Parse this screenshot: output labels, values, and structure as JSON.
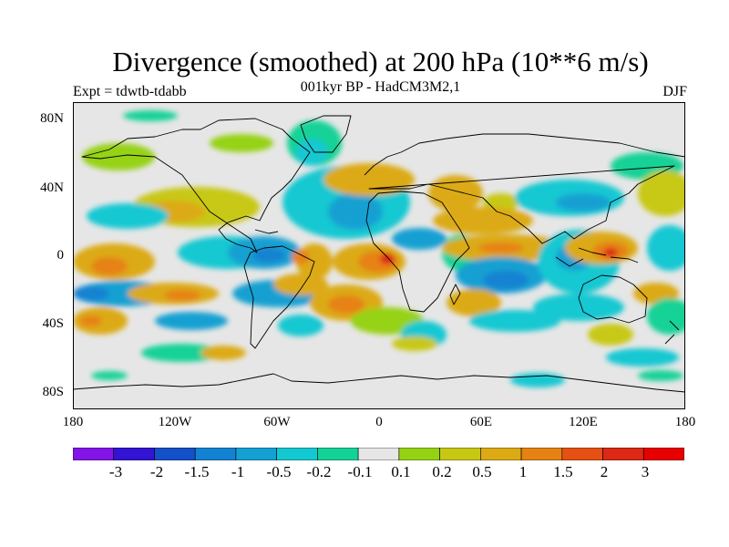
{
  "title": "Divergence (smoothed) at 200 hPa (10**6 m/s)",
  "subtitle": "001kyr BP - HadCM3M2,1",
  "experiment": "Expt = tdwtb-tdabb",
  "season": "DJF",
  "lat_labels": [
    "80N",
    "40N",
    "0",
    "40S",
    "80S"
  ],
  "lon_labels": [
    "180",
    "120W",
    "60W",
    "0",
    "60E",
    "120E",
    "180"
  ],
  "colorbar": {
    "labels": [
      "-3",
      "-2",
      "-1.5",
      "-1",
      "-0.5",
      "-0.2",
      "-0.1",
      "0.1",
      "0.2",
      "0.5",
      "1",
      "1.5",
      "2",
      "3"
    ],
    "colors": [
      "#8214e6",
      "#3214d2",
      "#1450c8",
      "#1482d2",
      "#14a0d2",
      "#14c8d2",
      "#14d296",
      "#e6e6e6",
      "#96d214",
      "#c8c814",
      "#dcaa14",
      "#e68214",
      "#e65014",
      "#dc2814",
      "#e60000"
    ]
  },
  "colors": {
    "neutral": "#e6e6e6",
    "coast": "#000000"
  }
}
